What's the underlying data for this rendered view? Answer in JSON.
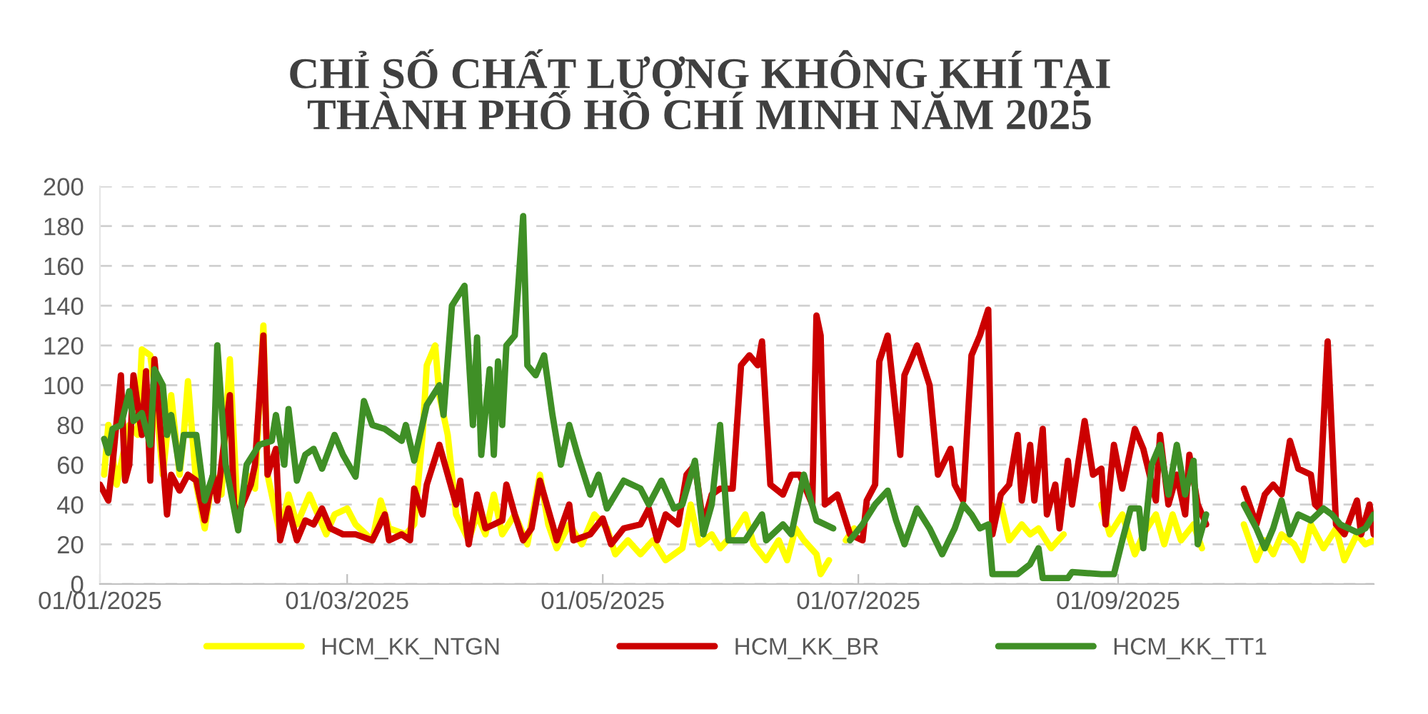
{
  "chart_data": {
    "type": "line",
    "title": "CHỈ SỐ CHẤT LƯỢNG KHÔNG KHÍ TẠI\nTHÀNH PHỐ HỒ CHÍ MINH NĂM 2025",
    "xlim": [
      "2025-01-01",
      "2025-11-01"
    ],
    "xticks": [
      {
        "value": "2025-01-01",
        "label": "01/01/2025"
      },
      {
        "value": "2025-03-01",
        "label": "01/03/2025"
      },
      {
        "value": "2025-05-01",
        "label": "01/05/2025"
      },
      {
        "value": "2025-07-01",
        "label": "01/07/2025"
      },
      {
        "value": "2025-09-01",
        "label": "01/09/2025"
      }
    ],
    "ylim": [
      0,
      200
    ],
    "yticks": [
      0,
      20,
      40,
      60,
      80,
      100,
      120,
      140,
      160,
      180,
      200
    ],
    "grid": "y",
    "legend": "bottom",
    "marker": "none",
    "line_style": "solid",
    "series": [
      {
        "name": "HCM_KK_NTGN",
        "color": "#ffff00",
        "x": [
          "2025-01-02",
          "2025-01-03",
          "2025-01-05",
          "2025-01-07",
          "2025-01-08",
          "2025-01-10",
          "2025-01-11",
          "2025-01-13",
          "2025-01-14",
          "2025-01-16",
          "2025-01-18",
          "2025-01-20",
          "2025-01-21",
          "2025-01-22",
          "2025-01-24",
          "2025-01-26",
          "2025-01-28",
          "2025-01-30",
          "2025-02-01",
          "2025-02-03",
          "2025-02-05",
          "2025-02-07",
          "2025-02-09",
          "2025-02-10",
          "2025-02-13",
          "2025-02-15",
          "2025-02-17",
          "2025-02-20",
          "2025-02-22",
          "2025-02-24",
          "2025-02-26",
          "2025-03-01",
          "2025-03-03",
          "2025-03-07",
          "2025-03-09",
          "2025-03-11",
          "2025-03-15",
          "2025-03-17",
          "2025-03-19",
          "2025-03-20",
          "2025-03-22",
          "2025-03-23",
          "2025-03-25",
          "2025-03-27",
          "2025-03-30",
          "2025-04-01",
          "2025-04-03",
          "2025-04-05",
          "2025-04-07",
          "2025-04-10",
          "2025-04-13",
          "2025-04-16",
          "2025-04-18",
          "2025-04-20",
          "2025-04-23",
          "2025-04-26",
          "2025-04-29",
          "2025-05-02",
          "2025-05-04",
          "2025-05-07",
          "2025-05-10",
          "2025-05-13",
          "2025-05-16",
          "2025-05-20",
          "2025-05-22",
          "2025-05-24",
          "2025-05-27",
          "2025-05-29",
          "2025-06-01",
          "2025-06-04",
          "2025-06-06",
          "2025-06-09",
          "2025-06-12",
          "2025-06-14",
          "2025-06-16",
          "2025-06-18",
          "2025-06-21",
          "2025-06-22",
          "2025-06-24",
          "2025-06-26",
          "2025-06-28",
          "2025-06-30",
          "2025-07-16",
          "2025-08-04",
          "2025-08-06",
          "2025-08-09",
          "2025-08-11",
          "2025-08-13",
          "2025-08-16",
          "2025-08-19",
          "2025-08-23",
          "2025-08-28",
          "2025-08-30",
          "2025-09-02",
          "2025-09-05",
          "2025-09-07",
          "2025-09-10",
          "2025-09-12",
          "2025-09-14",
          "2025-09-16",
          "2025-09-19",
          "2025-09-21",
          "2025-09-26",
          "2025-10-01",
          "2025-10-04",
          "2025-10-06",
          "2025-10-08",
          "2025-10-10",
          "2025-10-13",
          "2025-10-15",
          "2025-10-17",
          "2025-10-20",
          "2025-10-23",
          "2025-10-25",
          "2025-10-28",
          "2025-10-30",
          "2025-11-01"
        ],
        "values": [
          55,
          80,
          50,
          70,
          80,
          75,
          118,
          115,
          100,
          55,
          95,
          55,
          75,
          102,
          50,
          28,
          55,
          45,
          113,
          30,
          55,
          48,
          130,
          55,
          25,
          45,
          30,
          45,
          35,
          25,
          35,
          38,
          30,
          22,
          42,
          28,
          25,
          30,
          75,
          110,
          120,
          95,
          75,
          35,
          22,
          35,
          25,
          45,
          25,
          35,
          20,
          55,
          30,
          18,
          30,
          20,
          35,
          28,
          15,
          22,
          15,
          22,
          12,
          18,
          40,
          20,
          25,
          18,
          25,
          35,
          20,
          12,
          22,
          12,
          28,
          22,
          15,
          5,
          12,
          null,
          22,
          28,
          null,
          40,
          22,
          30,
          25,
          28,
          18,
          25,
          null,
          40,
          25,
          35,
          15,
          25,
          35,
          20,
          35,
          22,
          30,
          18,
          null,
          30,
          12,
          22,
          15,
          25,
          20,
          12,
          30,
          18,
          28,
          12,
          25,
          20,
          22
        ]
      },
      {
        "name": "HCM_KK_BR",
        "color": "#cc0000",
        "x": [
          "2025-01-01",
          "2025-01-03",
          "2025-01-04",
          "2025-01-06",
          "2025-01-07",
          "2025-01-08",
          "2025-01-09",
          "2025-01-11",
          "2025-01-12",
          "2025-01-13",
          "2025-01-14",
          "2025-01-15",
          "2025-01-17",
          "2025-01-18",
          "2025-01-20",
          "2025-01-22",
          "2025-01-24",
          "2025-01-26",
          "2025-01-28",
          "2025-01-29",
          "2025-01-30",
          "2025-02-01",
          "2025-02-02",
          "2025-02-03",
          "2025-02-06",
          "2025-02-07",
          "2025-02-09",
          "2025-02-10",
          "2025-02-12",
          "2025-02-13",
          "2025-02-15",
          "2025-02-17",
          "2025-02-19",
          "2025-02-21",
          "2025-02-23",
          "2025-02-25",
          "2025-02-28",
          "2025-03-03",
          "2025-03-07",
          "2025-03-10",
          "2025-03-11",
          "2025-03-14",
          "2025-03-16",
          "2025-03-17",
          "2025-03-19",
          "2025-03-20",
          "2025-03-23",
          "2025-03-25",
          "2025-03-27",
          "2025-03-28",
          "2025-03-30",
          "2025-04-01",
          "2025-04-03",
          "2025-04-05",
          "2025-04-07",
          "2025-04-08",
          "2025-04-10",
          "2025-04-12",
          "2025-04-14",
          "2025-04-16",
          "2025-04-19",
          "2025-04-20",
          "2025-04-23",
          "2025-04-24",
          "2025-04-28",
          "2025-05-01",
          "2025-05-03",
          "2025-05-06",
          "2025-05-10",
          "2025-05-12",
          "2025-05-14",
          "2025-05-16",
          "2025-05-19",
          "2025-05-21",
          "2025-05-23",
          "2025-05-25",
          "2025-05-27",
          "2025-05-29",
          "2025-06-01",
          "2025-06-03",
          "2025-06-05",
          "2025-06-07",
          "2025-06-08",
          "2025-06-10",
          "2025-06-13",
          "2025-06-15",
          "2025-06-17",
          "2025-06-20",
          "2025-06-21",
          "2025-06-22",
          "2025-06-23",
          "2025-06-26",
          "2025-06-29",
          "2025-07-02",
          "2025-07-03",
          "2025-07-05",
          "2025-07-06",
          "2025-07-08",
          "2025-07-11",
          "2025-07-12",
          "2025-07-15",
          "2025-07-18",
          "2025-07-20",
          "2025-07-23",
          "2025-07-24",
          "2025-07-26",
          "2025-07-28",
          "2025-07-30",
          "2025-08-01",
          "2025-08-02",
          "2025-08-04",
          "2025-08-06",
          "2025-08-08",
          "2025-08-09",
          "2025-08-11",
          "2025-08-12",
          "2025-08-14",
          "2025-08-15",
          "2025-08-17",
          "2025-08-18",
          "2025-08-20",
          "2025-08-21",
          "2025-08-24",
          "2025-08-26",
          "2025-08-28",
          "2025-08-29",
          "2025-08-31",
          "2025-09-02",
          "2025-09-05",
          "2025-09-07",
          "2025-09-10",
          "2025-09-11",
          "2025-09-13",
          "2025-09-15",
          "2025-09-17",
          "2025-09-18",
          "2025-09-20",
          "2025-09-22",
          "2025-09-26",
          "2025-10-01",
          "2025-10-04",
          "2025-10-06",
          "2025-10-08",
          "2025-10-10",
          "2025-10-12",
          "2025-10-14",
          "2025-10-17",
          "2025-10-18",
          "2025-10-19",
          "2025-10-21",
          "2025-10-23",
          "2025-10-25",
          "2025-10-28",
          "2025-10-29",
          "2025-10-31",
          "2025-11-01"
        ],
        "values": [
          50,
          42,
          60,
          105,
          52,
          60,
          105,
          75,
          107,
          52,
          113,
          90,
          35,
          55,
          47,
          55,
          52,
          32,
          55,
          42,
          60,
          95,
          40,
          35,
          50,
          60,
          125,
          55,
          68,
          22,
          38,
          22,
          32,
          30,
          38,
          28,
          25,
          25,
          22,
          35,
          22,
          25,
          22,
          48,
          35,
          50,
          70,
          55,
          40,
          52,
          20,
          45,
          28,
          30,
          32,
          50,
          35,
          22,
          28,
          52,
          30,
          22,
          40,
          22,
          25,
          33,
          20,
          28,
          30,
          38,
          22,
          35,
          30,
          55,
          60,
          30,
          45,
          48,
          48,
          110,
          115,
          110,
          122,
          50,
          45,
          55,
          55,
          40,
          135,
          125,
          40,
          45,
          25,
          22,
          42,
          50,
          112,
          125,
          65,
          105,
          120,
          100,
          55,
          68,
          50,
          42,
          115,
          125,
          138,
          25,
          45,
          50,
          75,
          42,
          70,
          42,
          78,
          35,
          50,
          28,
          62,
          40,
          82,
          55,
          58,
          30,
          70,
          48,
          78,
          68,
          42,
          75,
          40,
          55,
          35,
          65,
          40,
          30,
          null,
          48,
          30,
          45,
          50,
          45,
          72,
          58,
          55,
          40,
          38,
          122,
          30,
          25,
          42,
          25,
          40,
          25
        ]
      },
      {
        "name": "HCM_KK_TT1",
        "color": "#3f8f26",
        "x": [
          "2025-01-02",
          "2025-01-03",
          "2025-01-04",
          "2025-01-06",
          "2025-01-08",
          "2025-01-09",
          "2025-01-11",
          "2025-01-13",
          "2025-01-14",
          "2025-01-16",
          "2025-01-17",
          "2025-01-18",
          "2025-01-20",
          "2025-01-21",
          "2025-01-24",
          "2025-01-26",
          "2025-01-28",
          "2025-01-29",
          "2025-01-31",
          "2025-02-03",
          "2025-02-05",
          "2025-02-08",
          "2025-02-11",
          "2025-02-12",
          "2025-02-14",
          "2025-02-15",
          "2025-02-17",
          "2025-02-19",
          "2025-02-21",
          "2025-02-23",
          "2025-02-26",
          "2025-02-28",
          "2025-03-03",
          "2025-03-05",
          "2025-03-07",
          "2025-03-10",
          "2025-03-14",
          "2025-03-15",
          "2025-03-17",
          "2025-03-20",
          "2025-03-23",
          "2025-03-24",
          "2025-03-26",
          "2025-03-29",
          "2025-03-31",
          "2025-04-01",
          "2025-04-02",
          "2025-04-04",
          "2025-04-05",
          "2025-04-06",
          "2025-04-07",
          "2025-04-08",
          "2025-04-10",
          "2025-04-12",
          "2025-04-13",
          "2025-04-15",
          "2025-04-17",
          "2025-04-19",
          "2025-04-21",
          "2025-04-23",
          "2025-04-25",
          "2025-04-28",
          "2025-04-30",
          "2025-05-02",
          "2025-05-04",
          "2025-05-06",
          "2025-05-10",
          "2025-05-12",
          "2025-05-15",
          "2025-05-18",
          "2025-05-20",
          "2025-05-23",
          "2025-05-25",
          "2025-05-27",
          "2025-05-29",
          "2025-05-31",
          "2025-06-04",
          "2025-06-08",
          "2025-06-09",
          "2025-06-13",
          "2025-06-15",
          "2025-06-18",
          "2025-06-21",
          "2025-06-25",
          "2025-06-27",
          "2025-06-29",
          "2025-07-02",
          "2025-07-05",
          "2025-07-08",
          "2025-07-10",
          "2025-07-12",
          "2025-07-15",
          "2025-07-18",
          "2025-07-21",
          "2025-07-24",
          "2025-07-26",
          "2025-07-28",
          "2025-07-30",
          "2025-08-01",
          "2025-08-02",
          "2025-08-08",
          "2025-08-11",
          "2025-08-13",
          "2025-08-14",
          "2025-08-20",
          "2025-08-21",
          "2025-08-28",
          "2025-08-31",
          "2025-09-02",
          "2025-09-04",
          "2025-09-06",
          "2025-09-07",
          "2025-09-09",
          "2025-09-11",
          "2025-09-13",
          "2025-09-15",
          "2025-09-17",
          "2025-09-19",
          "2025-09-20",
          "2025-09-22",
          "2025-09-26",
          "2025-10-01",
          "2025-10-04",
          "2025-10-06",
          "2025-10-08",
          "2025-10-10",
          "2025-10-12",
          "2025-10-14",
          "2025-10-17",
          "2025-10-20",
          "2025-10-22",
          "2025-10-24",
          "2025-10-28",
          "2025-10-30",
          "2025-11-01"
        ],
        "values": [
          73,
          66,
          78,
          80,
          97,
          82,
          86,
          70,
          108,
          100,
          75,
          85,
          58,
          75,
          75,
          42,
          55,
          120,
          60,
          27,
          60,
          70,
          72,
          85,
          60,
          88,
          52,
          65,
          68,
          58,
          75,
          65,
          54,
          92,
          80,
          78,
          72,
          80,
          62,
          90,
          100,
          85,
          140,
          150,
          80,
          124,
          65,
          108,
          65,
          112,
          80,
          120,
          125,
          185,
          110,
          105,
          115,
          85,
          60,
          80,
          65,
          45,
          55,
          38,
          45,
          52,
          48,
          40,
          52,
          38,
          40,
          62,
          25,
          40,
          80,
          22,
          22,
          35,
          22,
          30,
          25,
          55,
          32,
          28,
          null,
          22,
          30,
          40,
          47,
          32,
          20,
          38,
          28,
          15,
          28,
          40,
          35,
          28,
          30,
          5,
          5,
          10,
          18,
          3,
          3,
          6,
          5,
          5,
          22,
          38,
          38,
          18,
          60,
          70,
          45,
          70,
          45,
          62,
          20,
          35,
          null,
          40,
          28,
          18,
          28,
          42,
          25,
          35,
          32,
          38,
          35,
          30,
          26,
          28,
          35
        ]
      }
    ]
  }
}
